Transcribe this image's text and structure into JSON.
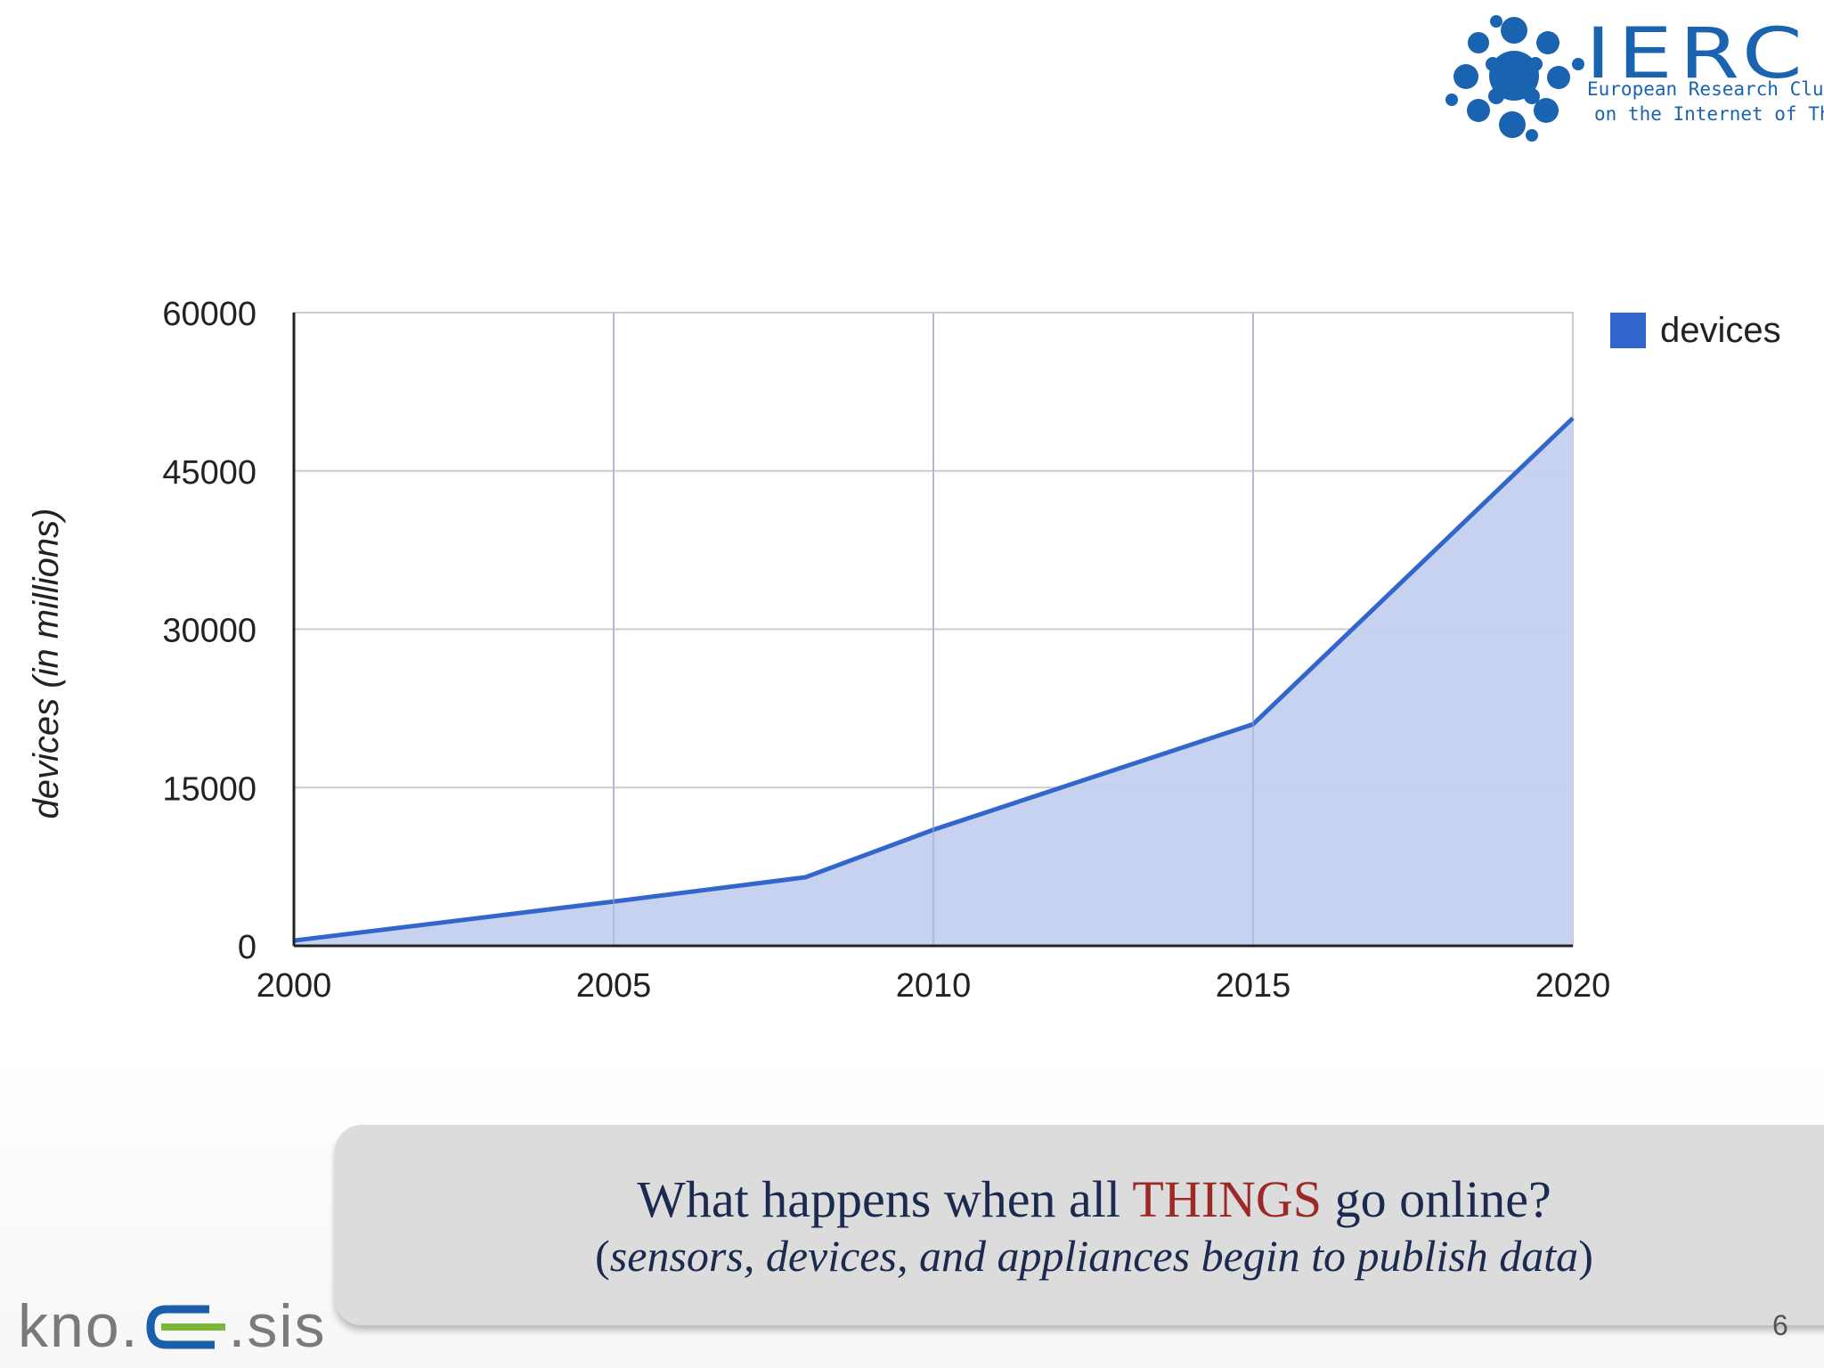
{
  "logo": {
    "name": "IERC",
    "line1": "European Research Cluster",
    "line2": "on the Internet of Things"
  },
  "chart_data": {
    "type": "area",
    "title": "",
    "xlabel": "",
    "ylabel": "devices (in millions)",
    "x": [
      2000,
      2005,
      2008,
      2010,
      2015,
      2020
    ],
    "series": [
      {
        "name": "devices",
        "values": [
          500,
          4200,
          6500,
          11000,
          21000,
          50000
        ]
      }
    ],
    "x_ticks": [
      "2000",
      "2005",
      "2010",
      "2015",
      "2020"
    ],
    "y_ticks": [
      "0",
      "15000",
      "30000",
      "45000",
      "60000"
    ],
    "xlim": [
      2000,
      2020
    ],
    "ylim": [
      0,
      60000
    ],
    "grid": true,
    "legend": "right",
    "colors": {
      "line": "#3366cc",
      "fill": "#c3d0ee"
    }
  },
  "caption": {
    "line1_before": "What happens when all ",
    "line1_highlight": "THINGS",
    "line1_after": " go online?",
    "line2_open": "(",
    "line2_italic": "sensors, devices, and appliances begin to publish data",
    "line2_close": ")"
  },
  "footer": {
    "brand_left": "kno.",
    "brand_right": ".sis",
    "page_number": "6"
  }
}
